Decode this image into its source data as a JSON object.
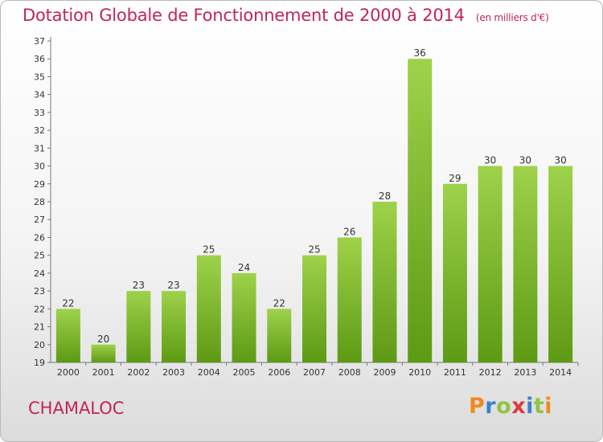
{
  "header": {
    "title": "Dotation Globale de Fonctionnement de 2000 à 2014",
    "unit_note": "(en milliers d'€)"
  },
  "footer": {
    "commune": "CHAMALOC",
    "logo_text": "Proxiti"
  },
  "colors": {
    "title": "#c0245c",
    "bar_top": "#9ed24a",
    "bar_bottom": "#5d9a14",
    "logo_letters": [
      "#f08a1c",
      "#3a7fd0",
      "#8cc63f",
      "#e03a3a",
      "#3a7fd0",
      "#8cc63f",
      "#f08a1c"
    ]
  },
  "chart_data": {
    "type": "bar",
    "title": "Dotation Globale de Fonctionnement de 2000 à 2014",
    "subtitle": "(en milliers d'€)",
    "categories": [
      "2000",
      "2001",
      "2002",
      "2003",
      "2004",
      "2005",
      "2006",
      "2007",
      "2008",
      "2009",
      "2010",
      "2011",
      "2012",
      "2013",
      "2014"
    ],
    "values": [
      22,
      20,
      23,
      23,
      25,
      24,
      22,
      25,
      26,
      28,
      36,
      29,
      30,
      30,
      30
    ],
    "ylim": [
      19,
      37
    ],
    "yticks": [
      19,
      20,
      21,
      22,
      23,
      24,
      25,
      26,
      27,
      28,
      29,
      30,
      31,
      32,
      33,
      34,
      35,
      36,
      37
    ],
    "grid": false,
    "data_labels": true
  }
}
